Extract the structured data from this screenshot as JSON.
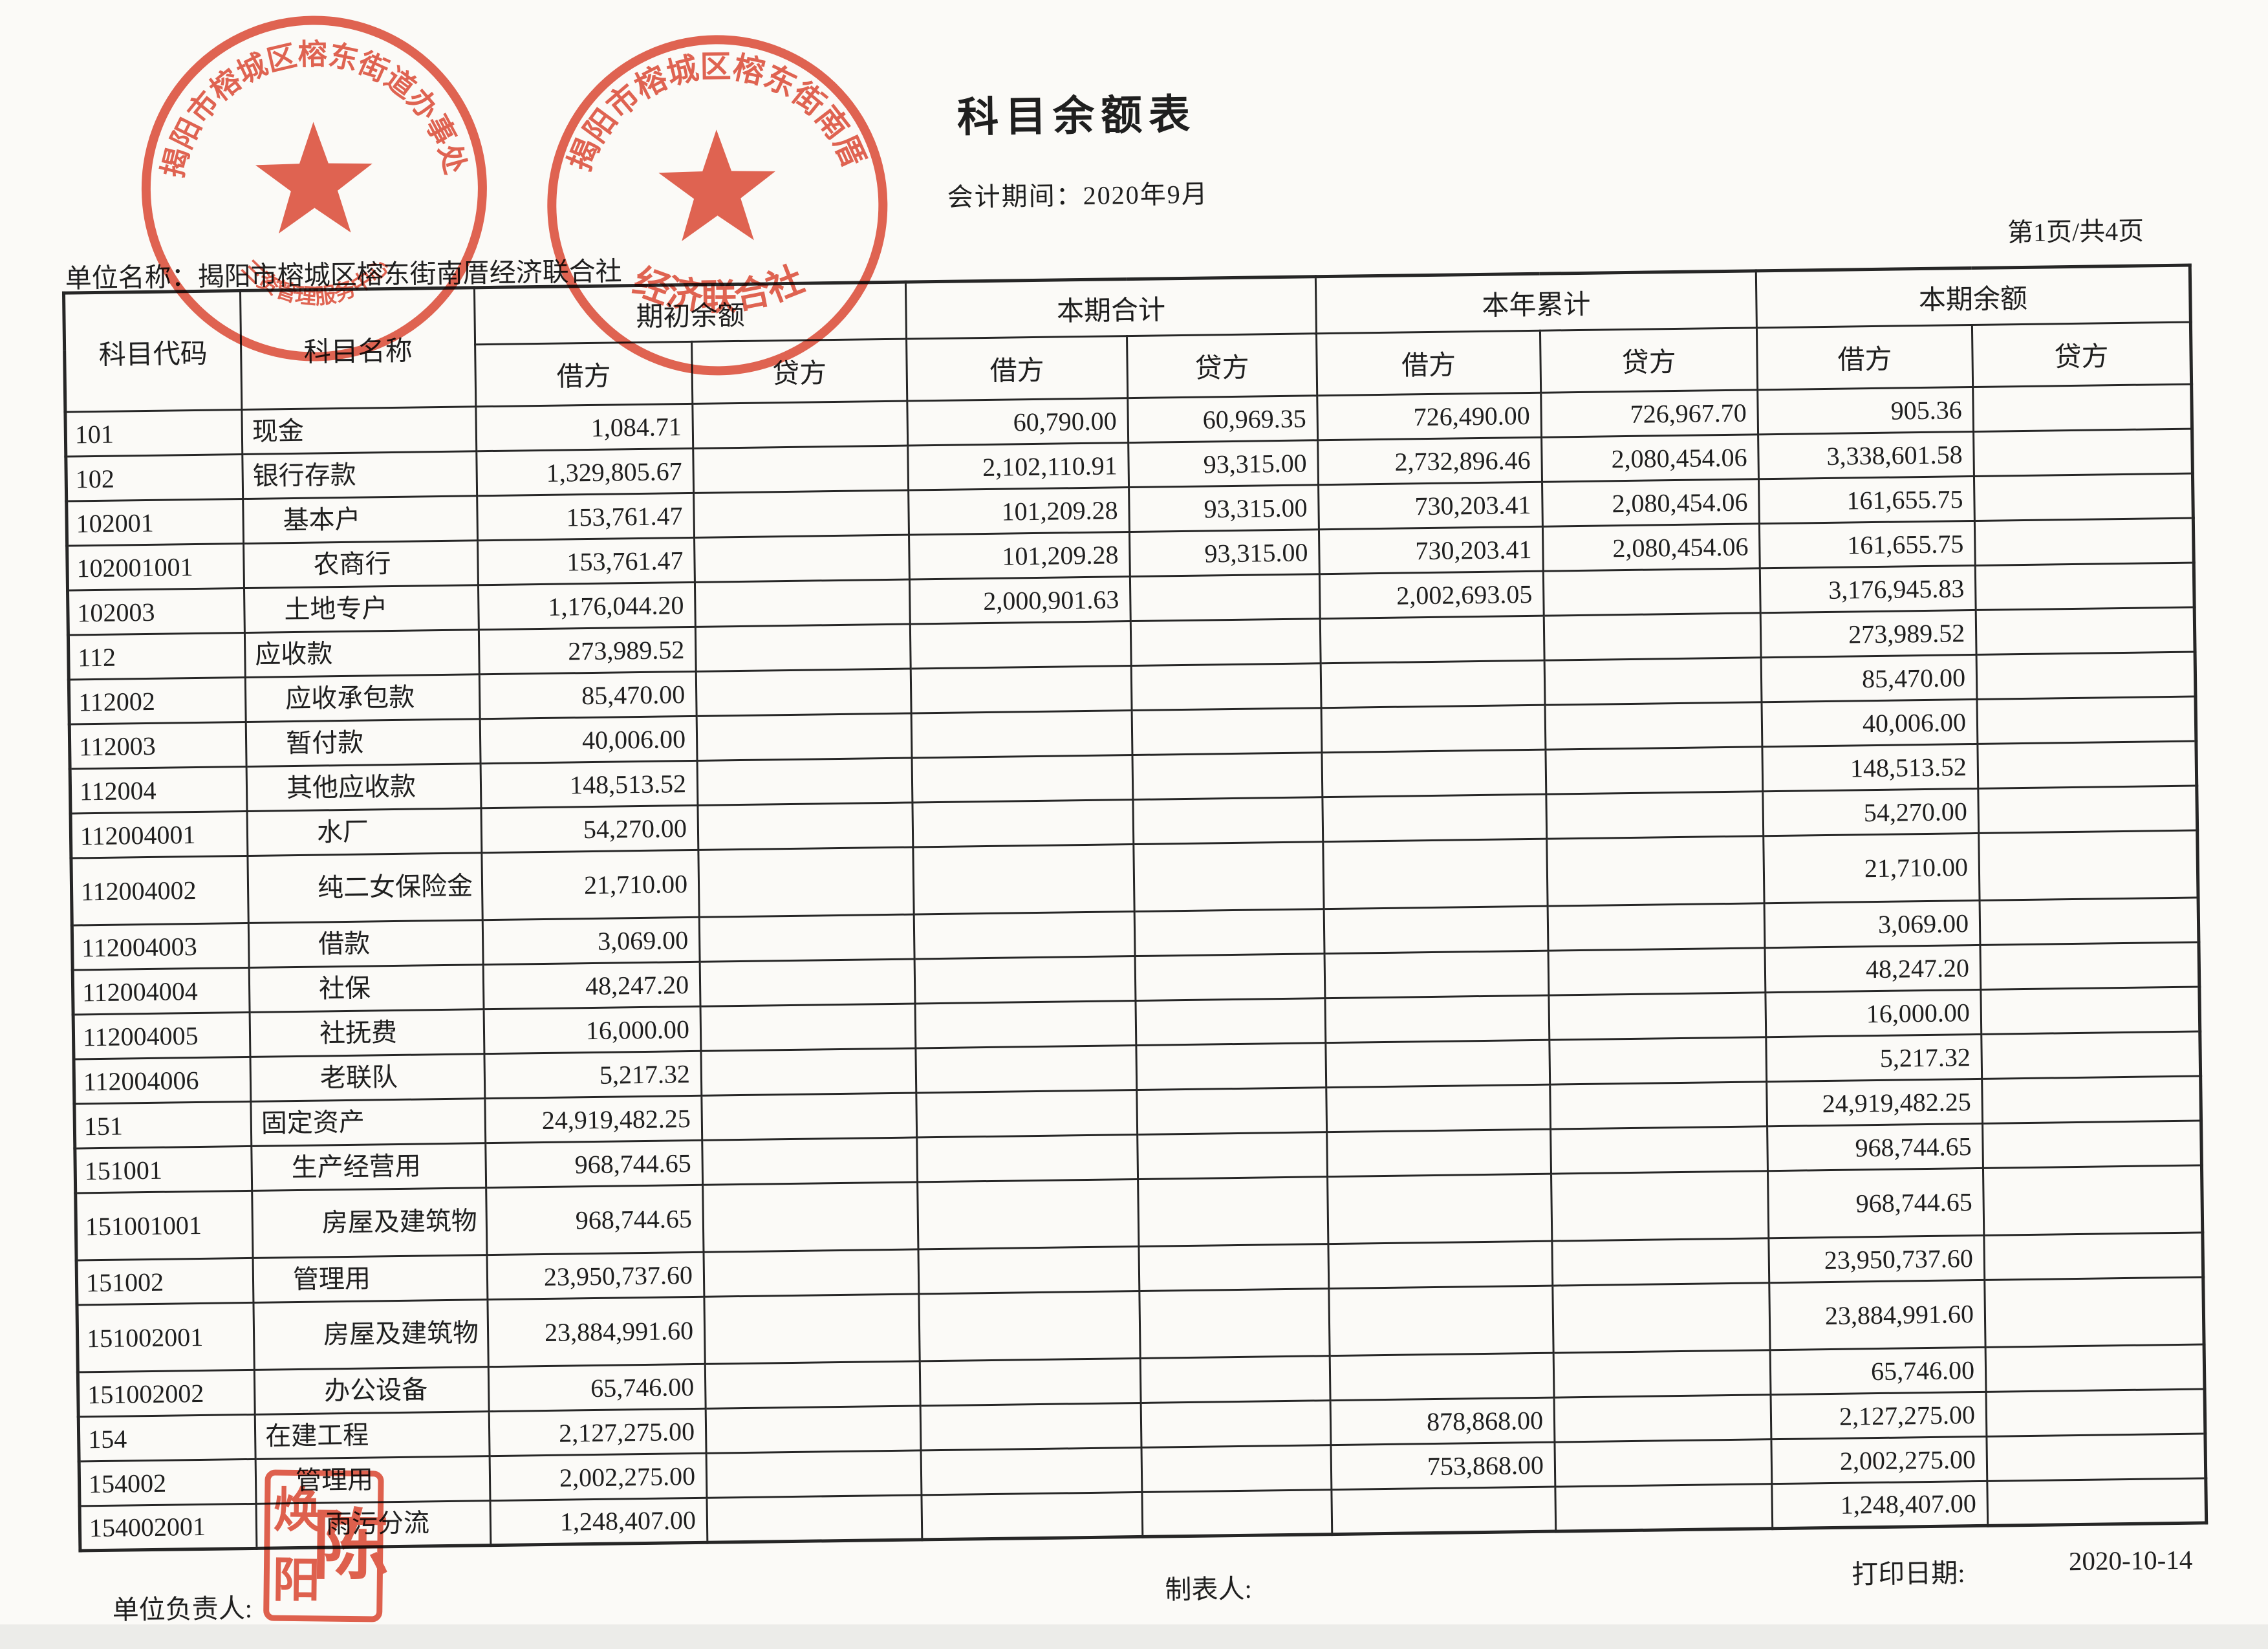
{
  "page": {
    "title": "科目余额表",
    "period": "会计期间：2020年9月",
    "page_info": "第1页/共4页",
    "unit_line": "单位名称：揭阳市榕城区榕东街南厝经济联合社"
  },
  "table": {
    "col_headers": {
      "code": "科目代码",
      "name": "科目名称",
      "groups": [
        "期初余额",
        "本期合计",
        "本年累计",
        "本期余额"
      ],
      "debit": "借方",
      "credit": "贷方"
    },
    "rows": [
      {
        "code": "101",
        "name": "现金",
        "cells": [
          "1,084.71",
          "",
          "60,790.00",
          "60,969.35",
          "726,490.00",
          "726,967.70",
          "905.36",
          ""
        ]
      },
      {
        "code": "102",
        "name": "银行存款",
        "cells": [
          "1,329,805.67",
          "",
          "2,102,110.91",
          "93,315.00",
          "2,732,896.46",
          "2,080,454.06",
          "3,338,601.58",
          ""
        ]
      },
      {
        "code": "102001",
        "name": "基本户",
        "cells": [
          "153,761.47",
          "",
          "101,209.28",
          "93,315.00",
          "730,203.41",
          "2,080,454.06",
          "161,655.75",
          ""
        ]
      },
      {
        "code": "102001001",
        "name": "农商行",
        "cells": [
          "153,761.47",
          "",
          "101,209.28",
          "93,315.00",
          "730,203.41",
          "2,080,454.06",
          "161,655.75",
          ""
        ]
      },
      {
        "code": "102003",
        "name": "土地专户",
        "cells": [
          "1,176,044.20",
          "",
          "2,000,901.63",
          "",
          "2,002,693.05",
          "",
          "3,176,945.83",
          ""
        ]
      },
      {
        "code": "112",
        "name": "应收款",
        "cells": [
          "273,989.52",
          "",
          "",
          "",
          "",
          "",
          "273,989.52",
          ""
        ]
      },
      {
        "code": "112002",
        "name": "应收承包款",
        "cells": [
          "85,470.00",
          "",
          "",
          "",
          "",
          "",
          "85,470.00",
          ""
        ]
      },
      {
        "code": "112003",
        "name": "暂付款",
        "cells": [
          "40,006.00",
          "",
          "",
          "",
          "",
          "",
          "40,006.00",
          ""
        ]
      },
      {
        "code": "112004",
        "name": "其他应收款",
        "cells": [
          "148,513.52",
          "",
          "",
          "",
          "",
          "",
          "148,513.52",
          ""
        ]
      },
      {
        "code": "112004001",
        "name": "水厂",
        "cells": [
          "54,270.00",
          "",
          "",
          "",
          "",
          "",
          "54,270.00",
          ""
        ]
      },
      {
        "code": "112004002",
        "name": "纯二女保险金",
        "cells": [
          "21,710.00",
          "",
          "",
          "",
          "",
          "",
          "21,710.00",
          ""
        ]
      },
      {
        "code": "112004003",
        "name": "借款",
        "cells": [
          "3,069.00",
          "",
          "",
          "",
          "",
          "",
          "3,069.00",
          ""
        ]
      },
      {
        "code": "112004004",
        "name": "社保",
        "cells": [
          "48,247.20",
          "",
          "",
          "",
          "",
          "",
          "48,247.20",
          ""
        ]
      },
      {
        "code": "112004005",
        "name": "社抚费",
        "cells": [
          "16,000.00",
          "",
          "",
          "",
          "",
          "",
          "16,000.00",
          ""
        ]
      },
      {
        "code": "112004006",
        "name": "老联队",
        "cells": [
          "5,217.32",
          "",
          "",
          "",
          "",
          "",
          "5,217.32",
          ""
        ]
      },
      {
        "code": "151",
        "name": "固定资产",
        "cells": [
          "24,919,482.25",
          "",
          "",
          "",
          "",
          "",
          "24,919,482.25",
          ""
        ]
      },
      {
        "code": "151001",
        "name": "生产经营用",
        "cells": [
          "968,744.65",
          "",
          "",
          "",
          "",
          "",
          "968,744.65",
          ""
        ]
      },
      {
        "code": "151001001",
        "name": "房屋及建筑物",
        "cells": [
          "968,744.65",
          "",
          "",
          "",
          "",
          "",
          "968,744.65",
          ""
        ]
      },
      {
        "code": "151002",
        "name": "管理用",
        "cells": [
          "23,950,737.60",
          "",
          "",
          "",
          "",
          "",
          "23,950,737.60",
          ""
        ]
      },
      {
        "code": "151002001",
        "name": "房屋及建筑物",
        "cells": [
          "23,884,991.60",
          "",
          "",
          "",
          "",
          "",
          "23,884,991.60",
          ""
        ]
      },
      {
        "code": "151002002",
        "name": "办公设备",
        "cells": [
          "65,746.00",
          "",
          "",
          "",
          "",
          "",
          "65,746.00",
          ""
        ]
      },
      {
        "code": "154",
        "name": "在建工程",
        "cells": [
          "2,127,275.00",
          "",
          "",
          "",
          "878,868.00",
          "",
          "2,127,275.00",
          ""
        ]
      },
      {
        "code": "154002",
        "name": "管理用",
        "cells": [
          "2,002,275.00",
          "",
          "",
          "",
          "753,868.00",
          "",
          "2,002,275.00",
          ""
        ]
      },
      {
        "code": "154002001",
        "name": "雨污分流",
        "cells": [
          "1,248,407.00",
          "",
          "",
          "",
          "",
          "",
          "1,248,407.00",
          ""
        ]
      }
    ]
  },
  "footer": {
    "responsible_label": "单位负责人:",
    "preparer_label": "制表人:",
    "print_date_label": "打印日期:",
    "print_date": "2020-10-14"
  },
  "seals": {
    "seal1": {
      "top_text": "揭阳市榕城区榕东街道办事处",
      "bottom_text": "三资管理服务中心"
    },
    "seal2": {
      "top_text": "揭阳市榕城区榕东街南厝",
      "bottom_text": "经济联合社"
    },
    "name_seal": {
      "right_char": "陈",
      "left_top_char": "焕",
      "left_bottom_char": "阳"
    }
  },
  "colors": {
    "stamp": "#d9442f",
    "ink": "#1f1f1f",
    "paper": "#fbfaf7"
  }
}
